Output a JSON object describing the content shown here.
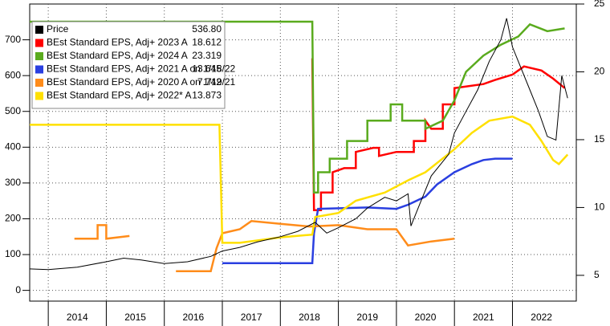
{
  "chart_data": {
    "type": "line",
    "xlim": [
      2013.68,
      2023.1
    ],
    "xticks": [
      {
        "value": 2014,
        "label": "2014"
      },
      {
        "value": 2015,
        "label": "2015"
      },
      {
        "value": 2016,
        "label": "2016"
      },
      {
        "value": 2017,
        "label": "2017"
      },
      {
        "value": 2018,
        "label": "2018"
      },
      {
        "value": 2019,
        "label": "2019"
      },
      {
        "value": 2020,
        "label": "2020"
      },
      {
        "value": 2021,
        "label": "2021"
      },
      {
        "value": 2022,
        "label": "2022"
      }
    ],
    "ylim": [
      -30,
      800
    ],
    "yticks": [
      0,
      100,
      200,
      300,
      400,
      500,
      600,
      700
    ],
    "y2lim": [
      3.1,
      25
    ],
    "y2ticks": [
      5,
      10,
      15,
      20,
      25
    ],
    "grid": true,
    "series": [
      {
        "name": "Price",
        "legend_value": "536.80",
        "color": "#000000",
        "axis": "y",
        "x": [
          2013.68,
          2014.0,
          2014.5,
          2015.0,
          2015.3,
          2015.6,
          2016.0,
          2016.4,
          2016.8,
          2017.0,
          2017.3,
          2017.6,
          2018.0,
          2018.3,
          2018.6,
          2018.8,
          2019.0,
          2019.3,
          2019.5,
          2019.8,
          2020.0,
          2020.2,
          2020.25,
          2020.4,
          2020.6,
          2020.9,
          2021.0,
          2021.2,
          2021.4,
          2021.6,
          2021.8,
          2021.9,
          2022.0,
          2022.1,
          2022.3,
          2022.45,
          2022.6,
          2022.75,
          2022.85,
          2022.95
        ],
        "values": [
          60,
          58,
          65,
          80,
          90,
          85,
          75,
          80,
          95,
          110,
          120,
          135,
          150,
          165,
          190,
          160,
          175,
          200,
          230,
          260,
          250,
          270,
          180,
          240,
          320,
          380,
          440,
          500,
          560,
          640,
          700,
          760,
          680,
          640,
          560,
          500,
          430,
          420,
          600,
          537
        ]
      },
      {
        "name": "BEst Standard EPS, Adj+ 2023 A",
        "legend_value": "18.612",
        "color": "#ff0000",
        "axis": "y2",
        "x": [
          2018.55,
          2018.58,
          2018.7,
          2018.7,
          2018.9,
          2018.9,
          2019.1,
          2019.3,
          2019.3,
          2019.6,
          2019.7,
          2019.7,
          2020.0,
          2020.3,
          2020.3,
          2020.5,
          2020.5,
          2020.6,
          2020.8,
          2020.8,
          2021.0,
          2021.0,
          2021.5,
          2021.7,
          2022.0,
          2022.2,
          2022.5,
          2022.7,
          2022.9
        ],
        "values": [
          21.0,
          9.8,
          9.8,
          11.1,
          11.1,
          12.6,
          12.9,
          12.9,
          14.1,
          14.4,
          14.4,
          13.8,
          14.1,
          14.1,
          14.9,
          14.9,
          16.4,
          15.8,
          15.8,
          17.6,
          17.6,
          18.8,
          19.1,
          19.4,
          19.8,
          20.4,
          20.1,
          19.5,
          18.8
        ]
      },
      {
        "name": "BEst Standard EPS, Adj+ 2024 A",
        "legend_value": "23.319",
        "color": "#5aab1e",
        "axis": "y2",
        "x": [
          2013.68,
          2018.55,
          2018.58,
          2018.65,
          2018.65,
          2018.85,
          2018.85,
          2019.15,
          2019.15,
          2019.5,
          2019.5,
          2019.9,
          2019.9,
          2020.1,
          2020.1,
          2020.5,
          2020.5,
          2020.8,
          2021.0,
          2021.2,
          2021.5,
          2021.8,
          2022.1,
          2022.3,
          2022.6,
          2022.9
        ],
        "values": [
          23.7,
          23.7,
          11.1,
          11.1,
          12.6,
          12.6,
          13.6,
          13.6,
          14.9,
          14.9,
          16.4,
          16.4,
          17.6,
          17.6,
          16.4,
          16.4,
          15.8,
          16.4,
          17.9,
          20.0,
          21.2,
          22.0,
          22.6,
          23.5,
          23.0,
          23.2
        ]
      },
      {
        "name": "BEst Standard EPS, Adj+ 2021 A on 1/18/22",
        "legend_value": "13.645",
        "color": "#2a3fe0",
        "axis": "y2",
        "x": [
          2017.0,
          2018.55,
          2018.58,
          2018.65,
          2019.5,
          2020.0,
          2020.2,
          2020.5,
          2020.7,
          2021.0,
          2021.3,
          2021.5,
          2021.7,
          2022.0
        ],
        "values": [
          5.9,
          5.9,
          8.1,
          9.9,
          10.0,
          9.9,
          10.2,
          10.8,
          11.7,
          12.6,
          13.2,
          13.5,
          13.6,
          13.6
        ]
      },
      {
        "name": "BEst Standard EPS, Adj+ 2020 A on 1/19/21",
        "legend_value": "7.742",
        "color": "#ff8c1a",
        "axis": "y2",
        "x": [
          2014.45,
          2014.85,
          2014.85,
          2015.0,
          2015.0,
          2015.4,
          null,
          2016.2,
          2016.8,
          2016.9,
          2017.0,
          2017.3,
          2017.5,
          2018.0,
          2018.5,
          2019.0,
          2019.5,
          2020.0,
          2020.2,
          2020.6,
          2021.0
        ],
        "values": [
          7.7,
          7.7,
          8.7,
          8.7,
          7.7,
          7.9,
          null,
          5.3,
          5.3,
          7.0,
          8.1,
          8.4,
          9.0,
          8.8,
          8.6,
          8.7,
          8.4,
          8.4,
          7.2,
          7.5,
          7.7
        ]
      },
      {
        "name": "BEst Standard EPS, Adj+ 2022* A",
        "legend_value": "13.873",
        "color": "#ffe000",
        "axis": "y2",
        "x": [
          2013.68,
          2016.95,
          2017.0,
          2017.3,
          2018.0,
          2018.55,
          2018.6,
          2019.0,
          2019.3,
          2019.8,
          2020.2,
          2020.5,
          2021.0,
          2021.3,
          2021.6,
          2022.0,
          2022.3,
          2022.5,
          2022.7,
          2022.8,
          2022.95
        ],
        "values": [
          16.1,
          16.1,
          7.4,
          7.4,
          7.8,
          8.0,
          9.3,
          9.6,
          10.5,
          11.1,
          12.0,
          12.6,
          14.3,
          15.5,
          16.4,
          16.7,
          16.1,
          14.9,
          13.5,
          13.2,
          13.9
        ]
      }
    ]
  }
}
